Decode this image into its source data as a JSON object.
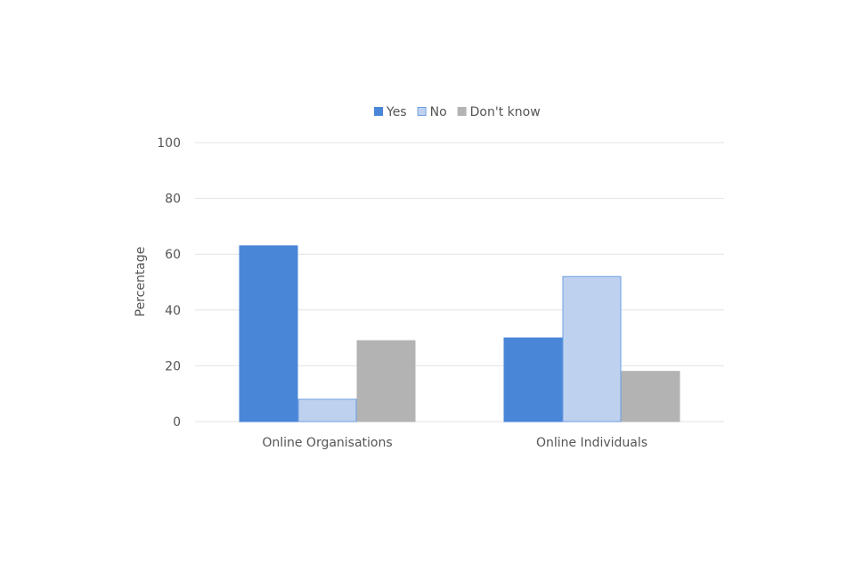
{
  "chart_data": {
    "type": "bar",
    "title": "",
    "xlabel": "",
    "ylabel": "Percentage",
    "ylim": [
      0,
      100
    ],
    "yticks": [
      0,
      20,
      40,
      60,
      80,
      100
    ],
    "grid": true,
    "legend_position": "top",
    "categories": [
      "Online Organisations",
      "Online Individuals"
    ],
    "series": [
      {
        "name": "Yes",
        "values": [
          63,
          30
        ],
        "color": "#4a86d8",
        "stroke": "#4a86d8"
      },
      {
        "name": "No",
        "values": [
          8,
          52
        ],
        "color": "#bed2ef",
        "stroke": "#6f9ee0"
      },
      {
        "name": "Don't know",
        "values": [
          29,
          18
        ],
        "color": "#b3b3b3",
        "stroke": "#b3b3b3"
      }
    ]
  }
}
